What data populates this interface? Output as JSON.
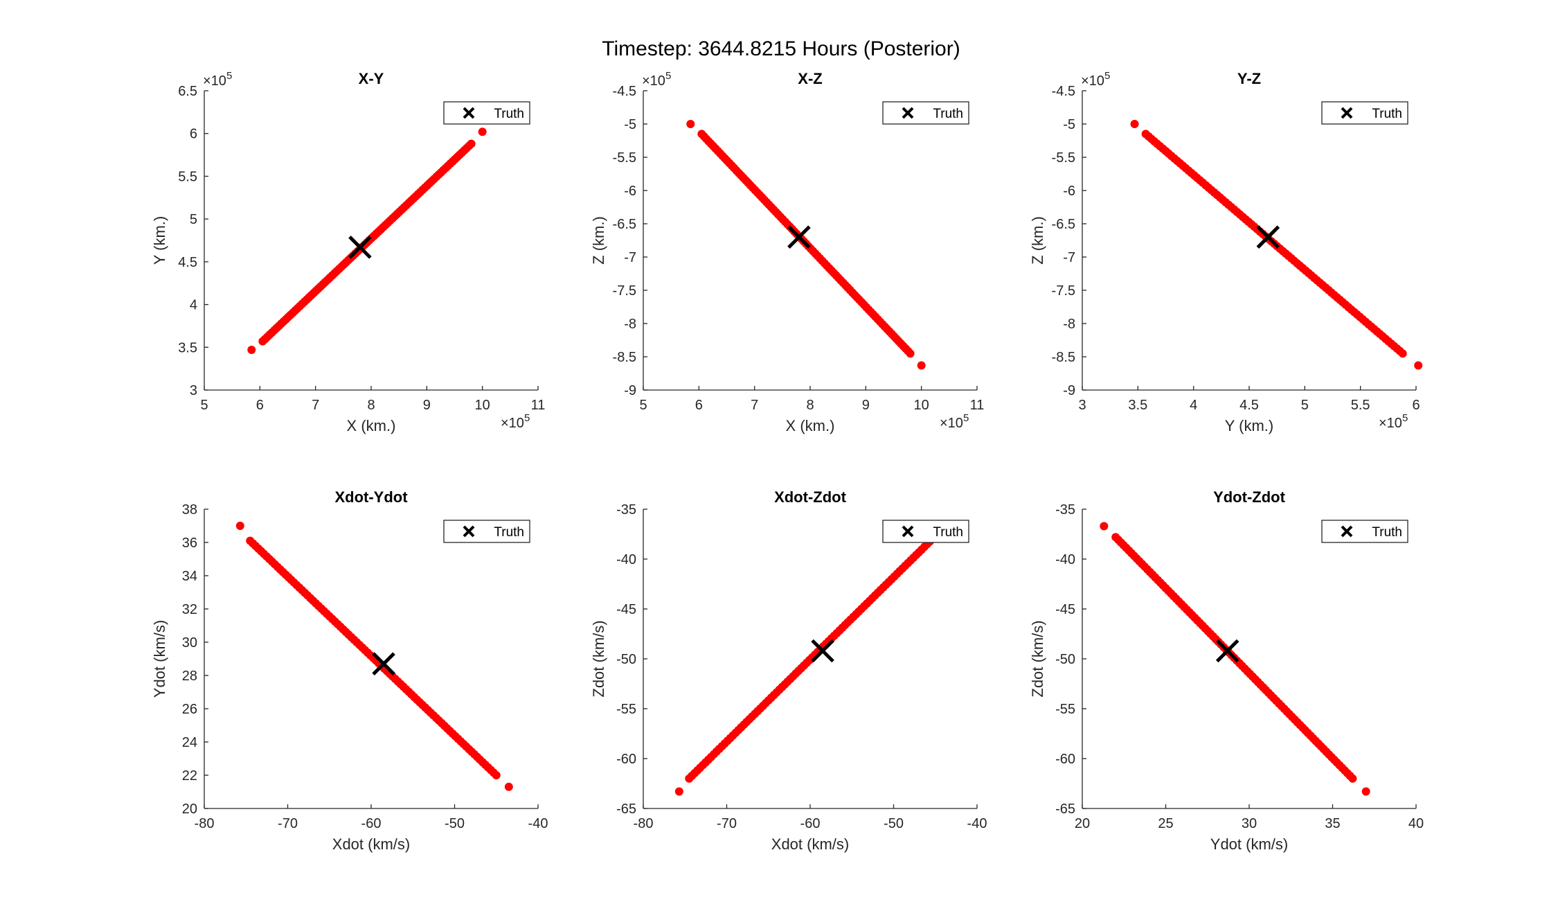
{
  "figure": {
    "title": "Timestep: 3644.8215 Hours (Posterior)"
  },
  "chart_data": [
    {
      "type": "scatter",
      "title": "X-Y",
      "xlabel": "X (km.)",
      "ylabel": "Y (km.)",
      "x_exponent": "×10",
      "x_exponent_power": "5",
      "y_exponent": "×10",
      "y_exponent_power": "5",
      "xlim": [
        5,
        11
      ],
      "ylim": [
        3,
        6.5
      ],
      "xticks": [
        5,
        6,
        7,
        8,
        9,
        10,
        11
      ],
      "yticks": [
        3,
        3.5,
        4,
        4.5,
        5,
        5.5,
        6,
        6.5
      ],
      "xtick_labels": [
        "5",
        "6",
        "7",
        "8",
        "9",
        "10",
        "11"
      ],
      "ytick_labels": [
        "3",
        "3.5",
        "4",
        "4.5",
        "5",
        "5.5",
        "6",
        "6.5"
      ],
      "samples": {
        "start": [
          6.05,
          3.57
        ],
        "end": [
          9.8,
          5.88
        ],
        "outliers": [
          [
            5.85,
            3.47
          ],
          [
            10.0,
            6.02
          ]
        ],
        "color": "#ff0000"
      },
      "truth": [
        7.8,
        4.67
      ],
      "legend": {
        "label": "Truth",
        "position": "top-right"
      }
    },
    {
      "type": "scatter",
      "title": "X-Z",
      "xlabel": "X (km.)",
      "ylabel": "Z (km.)",
      "x_exponent": "×10",
      "x_exponent_power": "5",
      "y_exponent": "×10",
      "y_exponent_power": "5",
      "xlim": [
        5,
        11
      ],
      "ylim": [
        -9,
        -4.5
      ],
      "xticks": [
        5,
        6,
        7,
        8,
        9,
        10,
        11
      ],
      "yticks": [
        -9,
        -8.5,
        -8,
        -7.5,
        -7,
        -6.5,
        -6,
        -5.5,
        -5,
        -4.5
      ],
      "xtick_labels": [
        "5",
        "6",
        "7",
        "8",
        "9",
        "10",
        "11"
      ],
      "ytick_labels": [
        "-9",
        "-8.5",
        "-8",
        "-7.5",
        "-7",
        "-6.5",
        "-6",
        "-5.5",
        "-5",
        "-4.5"
      ],
      "samples": {
        "start": [
          6.05,
          -5.15
        ],
        "end": [
          9.8,
          -8.45
        ],
        "outliers": [
          [
            5.85,
            -5.0
          ],
          [
            10.0,
            -8.63
          ]
        ],
        "color": "#ff0000"
      },
      "truth": [
        7.8,
        -6.7
      ],
      "legend": {
        "label": "Truth",
        "position": "top-right"
      }
    },
    {
      "type": "scatter",
      "title": "Y-Z",
      "xlabel": "Y (km.)",
      "ylabel": "Z (km.)",
      "x_exponent": "×10",
      "x_exponent_power": "5",
      "y_exponent": "×10",
      "y_exponent_power": "5",
      "xlim": [
        3,
        6
      ],
      "ylim": [
        -9,
        -4.5
      ],
      "xticks": [
        3,
        3.5,
        4,
        4.5,
        5,
        5.5,
        6
      ],
      "yticks": [
        -9,
        -8.5,
        -8,
        -7.5,
        -7,
        -6.5,
        -6,
        -5.5,
        -5,
        -4.5
      ],
      "xtick_labels": [
        "3",
        "3.5",
        "4",
        "4.5",
        "5",
        "5.5",
        "6"
      ],
      "ytick_labels": [
        "-9",
        "-8.5",
        "-8",
        "-7.5",
        "-7",
        "-6.5",
        "-6",
        "-5.5",
        "-5",
        "-4.5"
      ],
      "samples": {
        "start": [
          3.57,
          -5.15
        ],
        "end": [
          5.88,
          -8.45
        ],
        "outliers": [
          [
            3.47,
            -5.0
          ],
          [
            6.02,
            -8.63
          ]
        ],
        "color": "#ff0000"
      },
      "truth": [
        4.67,
        -6.7
      ],
      "legend": {
        "label": "Truth",
        "position": "top-right"
      }
    },
    {
      "type": "scatter",
      "title": "Xdot-Ydot",
      "xlabel": "Xdot (km/s)",
      "ylabel": "Ydot (km/s)",
      "xlim": [
        -80,
        -40
      ],
      "ylim": [
        20,
        38
      ],
      "xticks": [
        -80,
        -70,
        -60,
        -50,
        -40
      ],
      "yticks": [
        20,
        22,
        24,
        26,
        28,
        30,
        32,
        34,
        36,
        38
      ],
      "xtick_labels": [
        "-80",
        "-70",
        "-60",
        "-50",
        "-40"
      ],
      "ytick_labels": [
        "20",
        "22",
        "24",
        "26",
        "28",
        "30",
        "32",
        "34",
        "36",
        "38"
      ],
      "samples": {
        "start": [
          -74.5,
          36.1
        ],
        "end": [
          -45,
          22.0
        ],
        "outliers": [
          [
            -75.7,
            37.0
          ],
          [
            -43.5,
            21.3
          ]
        ],
        "color": "#ff0000"
      },
      "truth": [
        -58.5,
        28.7
      ],
      "legend": {
        "label": "Truth",
        "position": "top-right"
      }
    },
    {
      "type": "scatter",
      "title": "Xdot-Zdot",
      "xlabel": "Xdot (km/s)",
      "ylabel": "Zdot (km/s)",
      "xlim": [
        -80,
        -40
      ],
      "ylim": [
        -65,
        -35
      ],
      "xticks": [
        -80,
        -70,
        -60,
        -50,
        -40
      ],
      "yticks": [
        -65,
        -60,
        -55,
        -50,
        -45,
        -40,
        -35
      ],
      "xtick_labels": [
        "-80",
        "-70",
        "-60",
        "-50",
        "-40"
      ],
      "ytick_labels": [
        "-65",
        "-60",
        "-55",
        "-50",
        "-45",
        "-40",
        "-35"
      ],
      "samples": {
        "start": [
          -74.5,
          -62.0
        ],
        "end": [
          -45,
          -37.7
        ],
        "outliers": [
          [
            -75.7,
            -63.3
          ]
        ],
        "color": "#ff0000"
      },
      "truth": [
        -58.5,
        -49.2
      ],
      "legend": {
        "label": "Truth",
        "position": "top-right"
      }
    },
    {
      "type": "scatter",
      "title": "Ydot-Zdot",
      "xlabel": "Ydot (km/s)",
      "ylabel": "Zdot (km/s)",
      "xlim": [
        20,
        40
      ],
      "ylim": [
        -65,
        -35
      ],
      "xticks": [
        20,
        25,
        30,
        35,
        40
      ],
      "yticks": [
        -65,
        -60,
        -55,
        -50,
        -45,
        -40,
        -35
      ],
      "xtick_labels": [
        "20",
        "25",
        "30",
        "35",
        "40"
      ],
      "ytick_labels": [
        "-65",
        "-60",
        "-55",
        "-50",
        "-45",
        "-40",
        "-35"
      ],
      "samples": {
        "start": [
          22.0,
          -37.8
        ],
        "end": [
          36.2,
          -62.0
        ],
        "outliers": [
          [
            21.3,
            -36.7
          ],
          [
            37.0,
            -63.3
          ]
        ],
        "color": "#ff0000"
      },
      "truth": [
        28.7,
        -49.2
      ],
      "legend": {
        "label": "Truth",
        "position": "top-right"
      }
    }
  ]
}
